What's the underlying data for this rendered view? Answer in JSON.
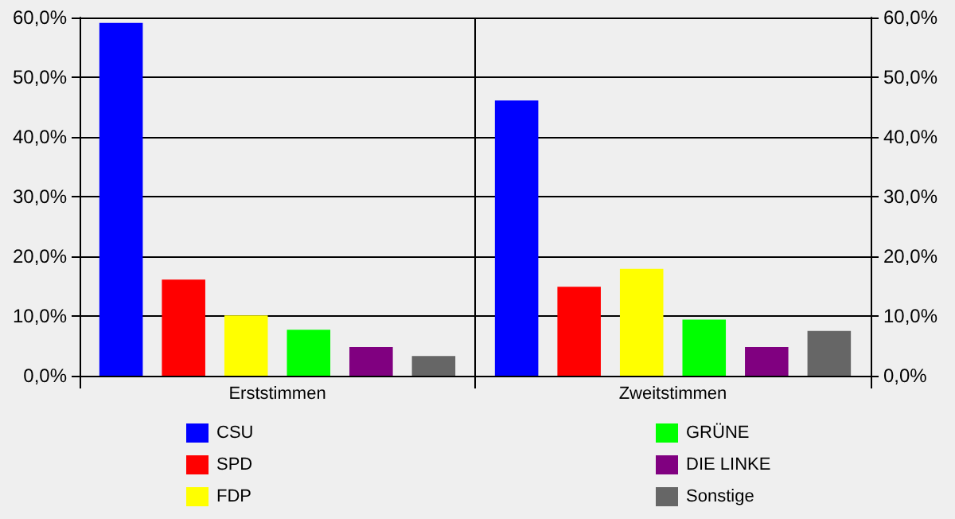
{
  "chart_data": {
    "type": "bar",
    "categories": [
      "Erststimmen",
      "Zweitstimmen"
    ],
    "series": [
      {
        "name": "CSU",
        "color": "#0000ff",
        "values": [
          59.1,
          46.1
        ]
      },
      {
        "name": "SPD",
        "color": "#ff0000",
        "values": [
          16.1,
          14.9
        ]
      },
      {
        "name": "FDP",
        "color": "#ffff00",
        "values": [
          10.1,
          17.9
        ]
      },
      {
        "name": "GRÜNE",
        "color": "#00ff00",
        "values": [
          7.7,
          9.4
        ]
      },
      {
        "name": "DIE LINKE",
        "color": "#800080",
        "values": [
          4.8,
          4.8
        ]
      },
      {
        "name": "Sonstige",
        "color": "#666666",
        "values": [
          3.3,
          7.5
        ]
      }
    ],
    "ylim": [
      0,
      60
    ],
    "yticks": [
      {
        "value": 0,
        "label": "0,0%"
      },
      {
        "value": 10,
        "label": "10,0%"
      },
      {
        "value": 20,
        "label": "20,0%"
      },
      {
        "value": 30,
        "label": "30,0%"
      },
      {
        "value": 40,
        "label": "40,0%"
      },
      {
        "value": 50,
        "label": "50,0%"
      },
      {
        "value": 60,
        "label": "60,0%"
      }
    ],
    "y2lim": [
      0,
      60
    ],
    "y2ticks": [
      {
        "value": 0,
        "label": "0,0%"
      },
      {
        "value": 10,
        "label": "10,0%"
      },
      {
        "value": 20,
        "label": "20,0%"
      },
      {
        "value": 30,
        "label": "30,0%"
      },
      {
        "value": 40,
        "label": "40,0%"
      },
      {
        "value": 50,
        "label": "50,0%"
      },
      {
        "value": 60,
        "label": "60,0%"
      }
    ],
    "grid": "y",
    "legend": "bottom"
  }
}
